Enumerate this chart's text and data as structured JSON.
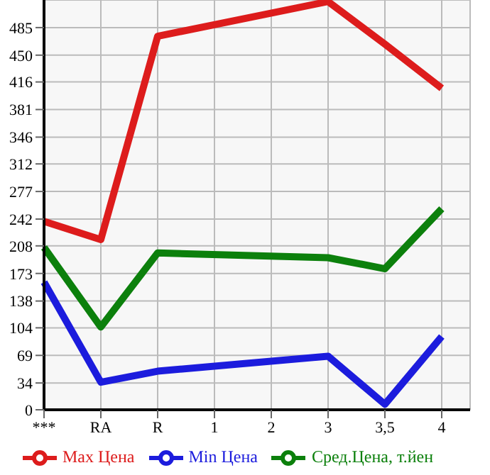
{
  "chart_data": {
    "type": "line",
    "categories": [
      "***",
      "RA",
      "R",
      "1",
      "2",
      "3",
      "3,5",
      "4"
    ],
    "series": [
      {
        "name": "Max Цена",
        "color": "#dd1c1c",
        "values": [
          239,
          216,
          474,
          null,
          null,
          518,
          464,
          408
        ]
      },
      {
        "name": "Min Цена",
        "color": "#1c1cdd",
        "values": [
          162,
          35,
          49,
          null,
          null,
          68,
          7,
          93
        ]
      },
      {
        "name": "Сред.Цена, т.йен",
        "color": "#0c800c",
        "values": [
          206,
          105,
          199,
          null,
          null,
          193,
          179,
          255
        ]
      }
    ],
    "ylim": [
      0,
      520
    ],
    "yticks": [
      0,
      34,
      69,
      104,
      138,
      173,
      208,
      242,
      277,
      312,
      346,
      381,
      416,
      450,
      485
    ],
    "grid": true,
    "legend": "bottom",
    "marker": "none",
    "line_style": "solid"
  }
}
